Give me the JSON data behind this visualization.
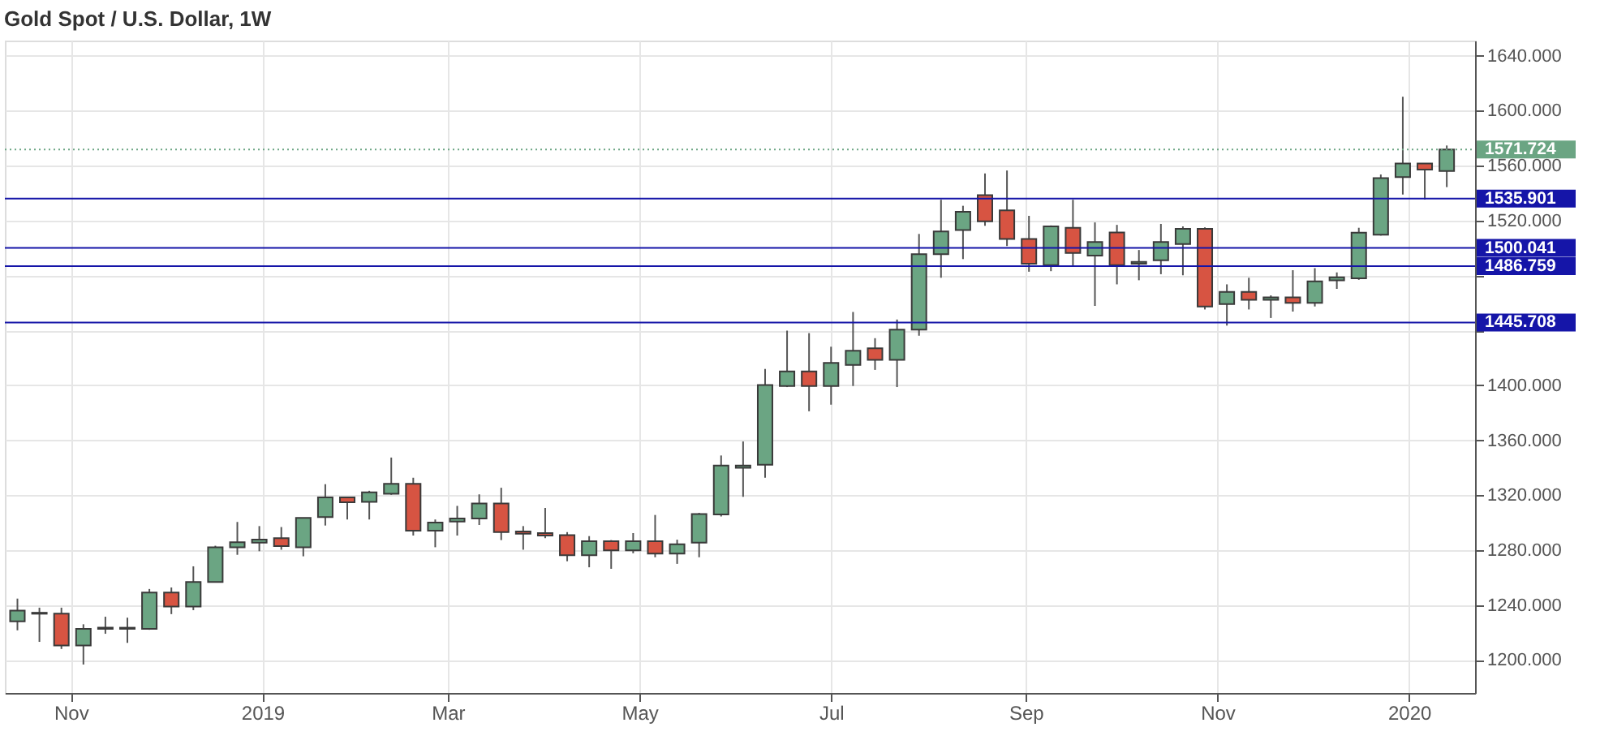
{
  "chart_data": {
    "type": "candlestick",
    "title": "Gold Spot / U.S. Dollar, 1W",
    "x": [
      "2018-10-15",
      "2018-10-22",
      "2018-10-29",
      "2018-11-05",
      "2018-11-12",
      "2018-11-19",
      "2018-11-26",
      "2018-12-03",
      "2018-12-10",
      "2018-12-17",
      "2018-12-24",
      "2018-12-31",
      "2019-01-07",
      "2019-01-14",
      "2019-01-21",
      "2019-01-28",
      "2019-02-04",
      "2019-02-11",
      "2019-02-18",
      "2019-02-25",
      "2019-03-04",
      "2019-03-11",
      "2019-03-18",
      "2019-03-25",
      "2019-04-01",
      "2019-04-08",
      "2019-04-15",
      "2019-04-22",
      "2019-04-29",
      "2019-05-06",
      "2019-05-13",
      "2019-05-20",
      "2019-05-27",
      "2019-06-03",
      "2019-06-10",
      "2019-06-17",
      "2019-06-24",
      "2019-07-01",
      "2019-07-08",
      "2019-07-15",
      "2019-07-22",
      "2019-07-29",
      "2019-08-05",
      "2019-08-12",
      "2019-08-19",
      "2019-08-26",
      "2019-09-02",
      "2019-09-09",
      "2019-09-16",
      "2019-09-23",
      "2019-09-30",
      "2019-10-07",
      "2019-10-14",
      "2019-10-21",
      "2019-10-28",
      "2019-11-04",
      "2019-11-11",
      "2019-11-18",
      "2019-11-25",
      "2019-12-02",
      "2019-12-09",
      "2019-12-16",
      "2019-12-23",
      "2019-12-30",
      "2020-01-06",
      "2020-01-13"
    ],
    "ohlc": [
      [
        1228.2,
        1244.7,
        1221.6,
        1235.9
      ],
      [
        1234.4,
        1238.1,
        1213.2,
        1233.7
      ],
      [
        1233.7,
        1238.1,
        1208.0,
        1210.6
      ],
      [
        1210.6,
        1226.0,
        1196.7,
        1222.7
      ],
      [
        1222.7,
        1231.5,
        1219.1,
        1223.5
      ],
      [
        1223.5,
        1230.8,
        1212.5,
        1222.7
      ],
      [
        1222.7,
        1251.7,
        1222.0,
        1249.1
      ],
      [
        1249.1,
        1252.8,
        1233.4,
        1238.9
      ],
      [
        1238.9,
        1268.2,
        1236.3,
        1256.8
      ],
      [
        1256.8,
        1283.2,
        1256.5,
        1282.1
      ],
      [
        1282.1,
        1300.5,
        1276.6,
        1285.8
      ],
      [
        1285.4,
        1297.5,
        1279.2,
        1287.6
      ],
      [
        1288.7,
        1296.8,
        1280.3,
        1282.9
      ],
      [
        1282.1,
        1303.4,
        1275.5,
        1303.4
      ],
      [
        1304.1,
        1328.0,
        1297.9,
        1318.4
      ],
      [
        1318.4,
        1318.4,
        1302.3,
        1314.8
      ],
      [
        1315.1,
        1323.2,
        1302.3,
        1322.1
      ],
      [
        1321.0,
        1347.4,
        1320.3,
        1328.3
      ],
      [
        1328.3,
        1332.7,
        1290.6,
        1294.2
      ],
      [
        1294.2,
        1302.3,
        1282.1,
        1300.1
      ],
      [
        1300.8,
        1312.2,
        1290.6,
        1303.0
      ],
      [
        1303.0,
        1320.6,
        1298.3,
        1314.0
      ],
      [
        1314.0,
        1325.4,
        1287.3,
        1293.1
      ],
      [
        1293.5,
        1297.5,
        1280.3,
        1292.0
      ],
      [
        1292.4,
        1310.7,
        1288.7,
        1290.6
      ],
      [
        1290.9,
        1293.1,
        1271.9,
        1276.3
      ],
      [
        1276.3,
        1290.2,
        1267.5,
        1286.5
      ],
      [
        1286.5,
        1287.3,
        1266.4,
        1279.9
      ],
      [
        1279.9,
        1292.4,
        1277.7,
        1286.5
      ],
      [
        1286.5,
        1305.6,
        1274.8,
        1277.4
      ],
      [
        1277.4,
        1287.6,
        1270.0,
        1284.3
      ],
      [
        1285.4,
        1307.1,
        1274.8,
        1306.3
      ],
      [
        1306.0,
        1348.9,
        1304.5,
        1341.5
      ],
      [
        1340.0,
        1359.1,
        1318.8,
        1341.5
      ],
      [
        1342.2,
        1411.9,
        1332.7,
        1400.2
      ],
      [
        1399.5,
        1439.8,
        1398.7,
        1410.1
      ],
      [
        1410.1,
        1438.0,
        1381.1,
        1399.5
      ],
      [
        1399.5,
        1428.1,
        1385.9,
        1416.3
      ],
      [
        1414.9,
        1453.4,
        1399.5,
        1425.1
      ],
      [
        1427.0,
        1434.3,
        1411.2,
        1418.5
      ],
      [
        1418.5,
        1447.9,
        1398.7,
        1440.5
      ],
      [
        1440.5,
        1510.2,
        1436.1,
        1495.5
      ],
      [
        1495.5,
        1535.1,
        1478.3,
        1512.0
      ],
      [
        1513.1,
        1530.7,
        1491.9,
        1526.3
      ],
      [
        1538.4,
        1554.2,
        1516.1,
        1519.4
      ],
      [
        1527.4,
        1556.4,
        1501.4,
        1506.5
      ],
      [
        1506.5,
        1523.4,
        1482.7,
        1488.6
      ],
      [
        1487.5,
        1516.4,
        1483.1,
        1515.7
      ],
      [
        1514.6,
        1535.1,
        1486.4,
        1496.3
      ],
      [
        1494.4,
        1518.6,
        1457.8,
        1504.3
      ],
      [
        1511.3,
        1516.8,
        1473.5,
        1487.5
      ],
      [
        1488.6,
        1498.5,
        1476.5,
        1489.9
      ],
      [
        1491.1,
        1517.5,
        1480.9,
        1504.3
      ],
      [
        1502.9,
        1515.7,
        1480.1,
        1513.9
      ],
      [
        1513.9,
        1515.0,
        1455.2,
        1457.4
      ],
      [
        1459.2,
        1473.5,
        1443.5,
        1468.0
      ],
      [
        1468.0,
        1478.3,
        1455.2,
        1462.2
      ],
      [
        1462.2,
        1465.5,
        1449.0,
        1464.0
      ],
      [
        1464.0,
        1483.8,
        1453.7,
        1460.0
      ],
      [
        1460.0,
        1485.3,
        1457.4,
        1475.7
      ],
      [
        1476.4,
        1482.2,
        1470.2,
        1478.6
      ],
      [
        1477.9,
        1514.7,
        1476.8,
        1511.1
      ],
      [
        1509.6,
        1553.5,
        1509.0,
        1550.9
      ],
      [
        1551.6,
        1610.1,
        1538.9,
        1561.5
      ],
      [
        1561.5,
        1561.5,
        1535.2,
        1557.1
      ],
      [
        1556.0,
        1574.6,
        1544.3,
        1571.724
      ]
    ],
    "colors": [
      "#6ba583",
      "#d75442",
      "#d75442",
      "#6ba583",
      "#6ba583",
      "#d75442",
      "#6ba583",
      "#d75442",
      "#6ba583",
      "#6ba583",
      "#6ba583",
      "#6ba583",
      "#d75442",
      "#6ba583",
      "#6ba583",
      "#d75442",
      "#6ba583",
      "#6ba583",
      "#d75442",
      "#6ba583",
      "#6ba583",
      "#6ba583",
      "#d75442",
      "#d75442",
      "#d75442",
      "#d75442",
      "#6ba583",
      "#d75442",
      "#6ba583",
      "#d75442",
      "#6ba583",
      "#6ba583",
      "#6ba583",
      "#6ba583",
      "#6ba583",
      "#6ba583",
      "#d75442",
      "#6ba583",
      "#6ba583",
      "#d75442",
      "#6ba583",
      "#6ba583",
      "#6ba583",
      "#6ba583",
      "#d75442",
      "#d75442",
      "#d75442",
      "#6ba583",
      "#d75442",
      "#6ba583",
      "#d75442",
      "#6ba583",
      "#6ba583",
      "#6ba583",
      "#d75442",
      "#6ba583",
      "#d75442",
      "#6ba583",
      "#d75442",
      "#6ba583",
      "#6ba583",
      "#6ba583",
      "#6ba583",
      "#6ba583",
      "#d75442",
      "#6ba583"
    ],
    "xlim": [
      "2018-10-11",
      "2020-01-22"
    ],
    "xticks": [
      {
        "value": "2018-11-01",
        "label": "Nov"
      },
      {
        "value": "2019-01-01",
        "label": "2019"
      },
      {
        "value": "2019-03-01",
        "label": "Mar"
      },
      {
        "value": "2019-05-01",
        "label": "May"
      },
      {
        "value": "2019-07-01",
        "label": "Jul"
      },
      {
        "value": "2019-09-01",
        "label": "Sep"
      },
      {
        "value": "2019-11-01",
        "label": "Nov"
      },
      {
        "value": "2020-01-01",
        "label": "2020"
      }
    ],
    "ylim": [
      1176,
      1651
    ],
    "yticks": [
      {
        "value": 1200,
        "label": "1200.000"
      },
      {
        "value": 1240,
        "label": "1240.000"
      },
      {
        "value": 1280,
        "label": "1280.000"
      },
      {
        "value": 1320,
        "label": "1320.000"
      },
      {
        "value": 1360,
        "label": "1360.000"
      },
      {
        "value": 1400,
        "label": "1400.000"
      },
      {
        "value": 1440,
        "label": null
      },
      {
        "value": 1480,
        "label": null
      },
      {
        "value": 1520,
        "label": "1520.000"
      },
      {
        "value": 1560,
        "label": "1560.000"
      },
      {
        "value": 1600,
        "label": "1600.000"
      },
      {
        "value": 1640,
        "label": "1640.000"
      }
    ],
    "ref_lines": [
      {
        "axis": "y",
        "value": 1571.724,
        "label": "1571.724",
        "color": "#6ba583",
        "line_style": "dotted"
      },
      {
        "axis": "y",
        "value": 1535.901,
        "label": "1535.901",
        "color": "#1515a8",
        "line_style": "solid"
      },
      {
        "axis": "y",
        "value": 1500.041,
        "label": "1500.041",
        "color": "#1515a8",
        "line_style": "solid"
      },
      {
        "axis": "y",
        "value": 1486.759,
        "label": "1486.759",
        "color": "#1515a8",
        "line_style": "solid"
      },
      {
        "axis": "y",
        "value": 1445.708,
        "label": "1445.708",
        "color": "#1515a8",
        "line_style": "solid"
      }
    ],
    "grid": true
  }
}
